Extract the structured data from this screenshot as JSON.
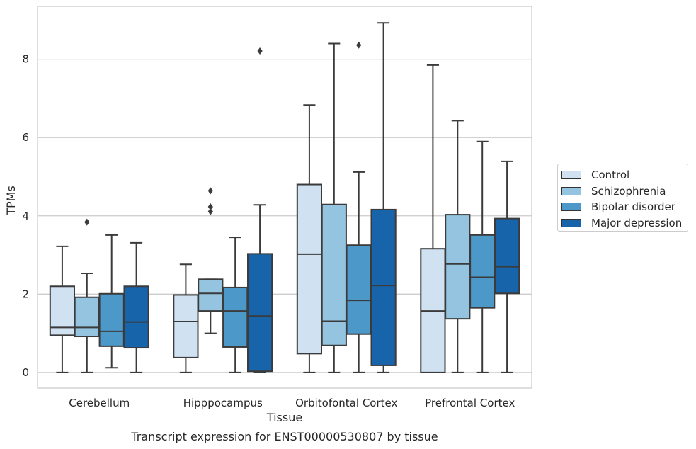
{
  "chart_data": {
    "type": "box",
    "title": "Transcript expression for ENST00000530807 by tissue",
    "xlabel": "Tissue",
    "ylabel": "TPMs",
    "ylim": [
      -0.4,
      9.35
    ],
    "yticks": [
      0,
      2,
      4,
      6,
      8
    ],
    "grid": "horizontal",
    "legend_position": "right",
    "categories": [
      "Cerebellum",
      "Hipppocampus",
      "Orbitofontal Cortex",
      "Prefrontal Cortex"
    ],
    "series": [
      {
        "name": "Control",
        "color": "#d0e1f2",
        "boxes": [
          {
            "whislo": 0.0,
            "q1": 0.95,
            "med": 1.15,
            "q3": 2.2,
            "whishi": 3.22,
            "fliers": []
          },
          {
            "whislo": 0.0,
            "q1": 0.38,
            "med": 1.3,
            "q3": 1.98,
            "whishi": 2.76,
            "fliers": []
          },
          {
            "whislo": 0.0,
            "q1": 0.48,
            "med": 3.02,
            "q3": 4.8,
            "whishi": 6.83,
            "fliers": []
          },
          {
            "whislo": 0.0,
            "q1": 0.0,
            "med": 1.57,
            "q3": 3.16,
            "whishi": 7.85,
            "fliers": []
          }
        ]
      },
      {
        "name": "Schizophrenia",
        "color": "#94c4df",
        "boxes": [
          {
            "whislo": 0.0,
            "q1": 0.92,
            "med": 1.15,
            "q3": 1.92,
            "whishi": 2.53,
            "fliers": [
              3.84
            ]
          },
          {
            "whislo": 1.0,
            "q1": 1.57,
            "med": 2.02,
            "q3": 2.38,
            "whishi": 2.38,
            "fliers": [
              4.11,
              4.23,
              4.64
            ]
          },
          {
            "whislo": 0.0,
            "q1": 0.69,
            "med": 1.31,
            "q3": 4.29,
            "whishi": 8.4,
            "fliers": []
          },
          {
            "whislo": 0.0,
            "q1": 1.37,
            "med": 2.77,
            "q3": 4.03,
            "whishi": 6.43,
            "fliers": []
          }
        ]
      },
      {
        "name": "Bipolar disorder",
        "color": "#4b98c9",
        "boxes": [
          {
            "whislo": 0.12,
            "q1": 0.67,
            "med": 1.05,
            "q3": 2.01,
            "whishi": 3.51,
            "fliers": []
          },
          {
            "whislo": 0.0,
            "q1": 0.65,
            "med": 1.57,
            "q3": 2.17,
            "whishi": 3.45,
            "fliers": []
          },
          {
            "whislo": 0.0,
            "q1": 0.98,
            "med": 1.84,
            "q3": 3.25,
            "whishi": 5.12,
            "fliers": [
              8.36
            ]
          },
          {
            "whislo": 0.0,
            "q1": 1.65,
            "med": 2.43,
            "q3": 3.51,
            "whishi": 5.9,
            "fliers": []
          }
        ]
      },
      {
        "name": "Major depression",
        "color": "#1764ab",
        "boxes": [
          {
            "whislo": 0.0,
            "q1": 0.63,
            "med": 1.29,
            "q3": 2.2,
            "whishi": 3.31,
            "fliers": []
          },
          {
            "whislo": 0.0,
            "q1": 0.03,
            "med": 1.44,
            "q3": 3.03,
            "whishi": 4.28,
            "fliers": [
              8.21
            ]
          },
          {
            "whislo": 0.0,
            "q1": 0.18,
            "med": 2.22,
            "q3": 4.16,
            "whishi": 8.93,
            "fliers": []
          },
          {
            "whislo": 0.0,
            "q1": 2.02,
            "med": 2.7,
            "q3": 3.93,
            "whishi": 5.39,
            "fliers": []
          }
        ]
      }
    ]
  }
}
